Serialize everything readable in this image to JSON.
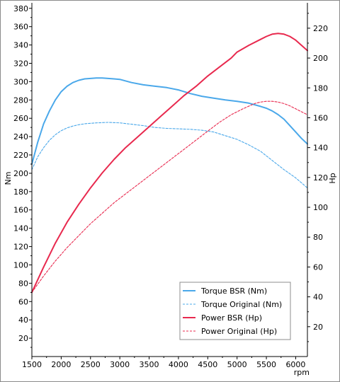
{
  "chart_data": {
    "type": "line",
    "xlabel": "rpm",
    "y_left_label": "Nm",
    "y_right_label": "Hp",
    "x_ticks": [
      1500,
      2000,
      2500,
      3000,
      3500,
      4000,
      4500,
      5000,
      5500,
      6000
    ],
    "xlim": [
      1500,
      6200
    ],
    "y_left_ticks": [
      20,
      40,
      60,
      80,
      100,
      120,
      140,
      160,
      180,
      200,
      220,
      240,
      260,
      280,
      300,
      320,
      340,
      360,
      380
    ],
    "y_left_lim": [
      0,
      386
    ],
    "y_right_ticks": [
      20,
      40,
      60,
      80,
      100,
      120,
      140,
      160,
      180,
      200,
      220
    ],
    "y_right_lim": [
      0,
      237
    ],
    "grid": false,
    "legend_position": "bottom-right",
    "series": [
      {
        "name": "Torque BSR (Nm)",
        "axis": "left",
        "color": "#4aa8ea",
        "dashed": false,
        "x": [
          1500,
          1600,
          1700,
          1800,
          1900,
          2000,
          2100,
          2200,
          2300,
          2400,
          2500,
          2600,
          2700,
          2800,
          2900,
          3000,
          3200,
          3400,
          3600,
          3800,
          4000,
          4200,
          4400,
          4600,
          4800,
          5000,
          5200,
          5400,
          5500,
          5600,
          5700,
          5800,
          5900,
          6000,
          6100,
          6200
        ],
        "y": [
          210,
          234,
          254,
          268,
          280,
          289,
          295,
          299,
          301.5,
          303,
          303.5,
          304,
          304,
          303.5,
          303,
          302.5,
          299,
          296.5,
          295,
          293.5,
          291,
          287,
          284,
          282,
          280,
          278.5,
          276.5,
          273,
          271,
          268,
          264,
          259,
          252,
          245,
          238,
          232
        ]
      },
      {
        "name": "Torque Original (Nm)",
        "axis": "left",
        "color": "#4aa8ea",
        "dashed": true,
        "x": [
          1500,
          1600,
          1700,
          1800,
          1900,
          2000,
          2100,
          2200,
          2300,
          2400,
          2500,
          2600,
          2800,
          3000,
          3200,
          3400,
          3600,
          3800,
          4000,
          4200,
          4400,
          4600,
          4800,
          5000,
          5200,
          5400,
          5600,
          5800,
          6000,
          6200
        ],
        "y": [
          204,
          218,
          228,
          236,
          242,
          246.5,
          249.5,
          251.5,
          253,
          254,
          254.5,
          255,
          255.5,
          255,
          253.5,
          252,
          250,
          249,
          248.5,
          248,
          247,
          245,
          241,
          237,
          231,
          224,
          214,
          204,
          195,
          184
        ]
      },
      {
        "name": "Power BSR (Hp)",
        "axis": "right",
        "color": "#e8294e",
        "dashed": false,
        "x": [
          1500,
          1700,
          1900,
          2100,
          2300,
          2500,
          2700,
          2900,
          3100,
          3300,
          3500,
          3700,
          3900,
          4100,
          4300,
          4500,
          4700,
          4900,
          5000,
          5200,
          5400,
          5500,
          5600,
          5700,
          5800,
          5900,
          6000,
          6100,
          6200
        ],
        "y": [
          43,
          60,
          76,
          90,
          102,
          113,
          123,
          132,
          140,
          147,
          154,
          161,
          168,
          175,
          181,
          188,
          194,
          200,
          204,
          208.5,
          212.5,
          214.5,
          216,
          216.5,
          216,
          214.5,
          212,
          208.5,
          205
        ]
      },
      {
        "name": "Power Original (Hp)",
        "axis": "right",
        "color": "#e8294e",
        "dashed": true,
        "x": [
          1500,
          1700,
          1900,
          2100,
          2300,
          2500,
          2700,
          2900,
          3100,
          3300,
          3500,
          3700,
          3900,
          4100,
          4300,
          4500,
          4700,
          4900,
          5100,
          5300,
          5400,
          5500,
          5600,
          5700,
          5800,
          5900,
          6000,
          6100,
          6200
        ],
        "y": [
          43,
          54,
          64,
          73,
          81,
          89,
          96,
          103,
          109,
          115,
          121,
          127,
          133,
          139,
          145,
          151,
          157,
          162,
          166,
          169.5,
          170.5,
          171,
          171,
          170.5,
          169.5,
          168,
          166,
          164,
          162
        ]
      }
    ]
  }
}
